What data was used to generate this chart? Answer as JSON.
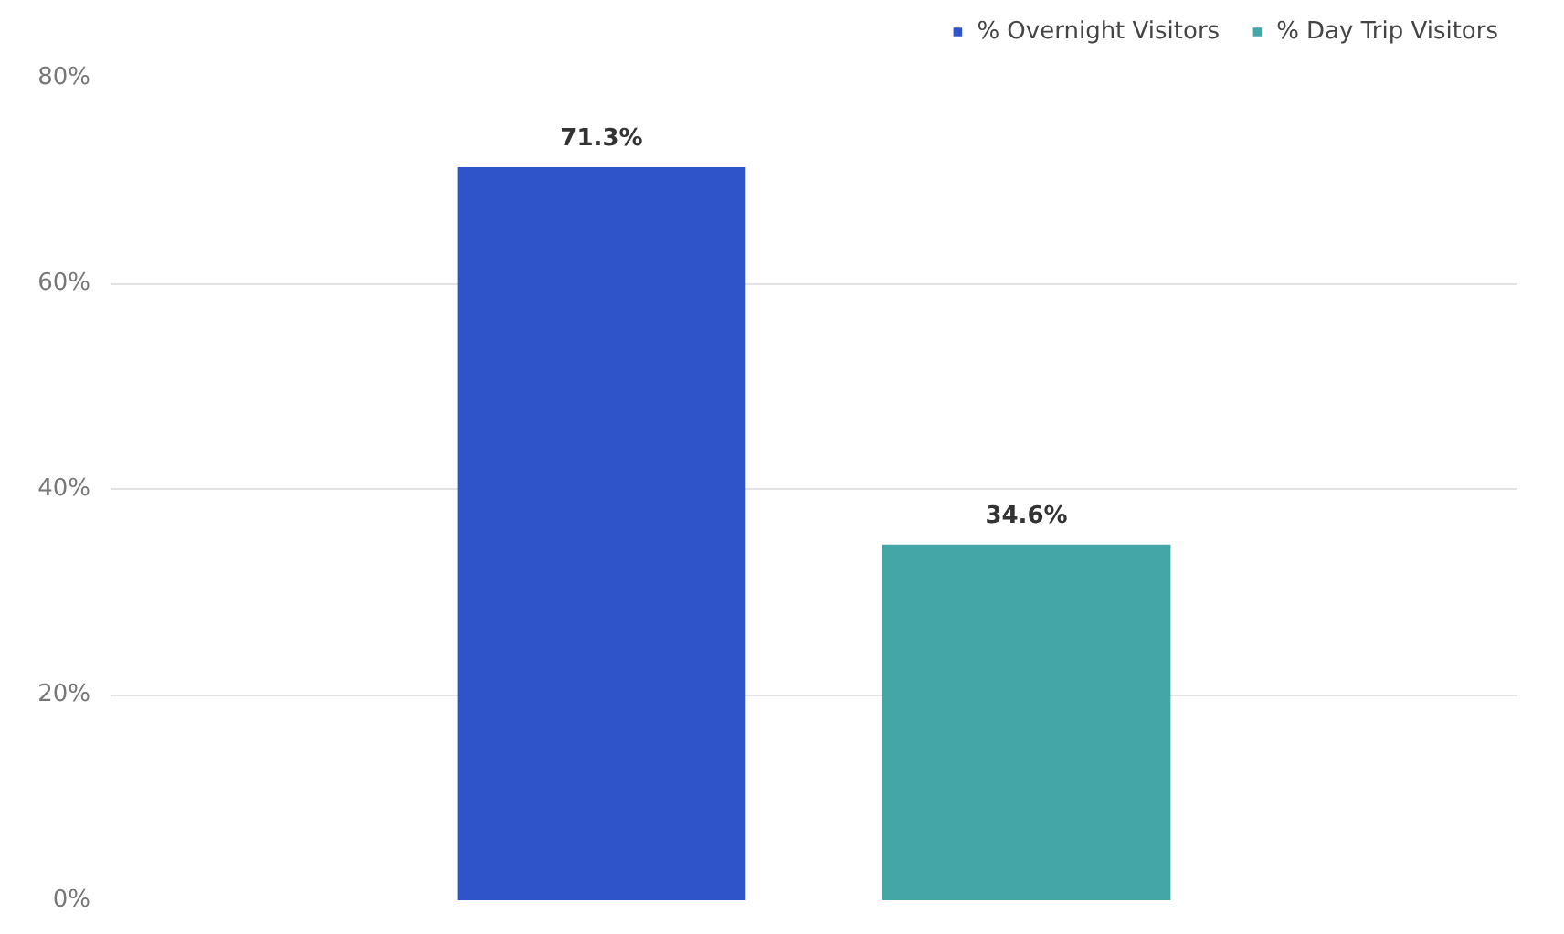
{
  "chart_data": {
    "type": "bar",
    "categories": [
      null
    ],
    "series": [
      {
        "name": "% Overnight Visitors",
        "color": "#2f54c9",
        "values": [
          71.3
        ],
        "value_labels": [
          "71.3%"
        ]
      },
      {
        "name": "% Day Trip Visitors",
        "color": "#45a6a8",
        "values": [
          34.6
        ],
        "value_labels": [
          "34.6%"
        ]
      }
    ],
    "ylim": [
      0,
      80
    ],
    "yticks": [
      {
        "value": 0,
        "label": "0%"
      },
      {
        "value": 20,
        "label": "20%"
      },
      {
        "value": 40,
        "label": "40%"
      },
      {
        "value": 60,
        "label": "60%"
      },
      {
        "value": 80,
        "label": "80%"
      }
    ],
    "grid": "y",
    "legend": "top right"
  }
}
